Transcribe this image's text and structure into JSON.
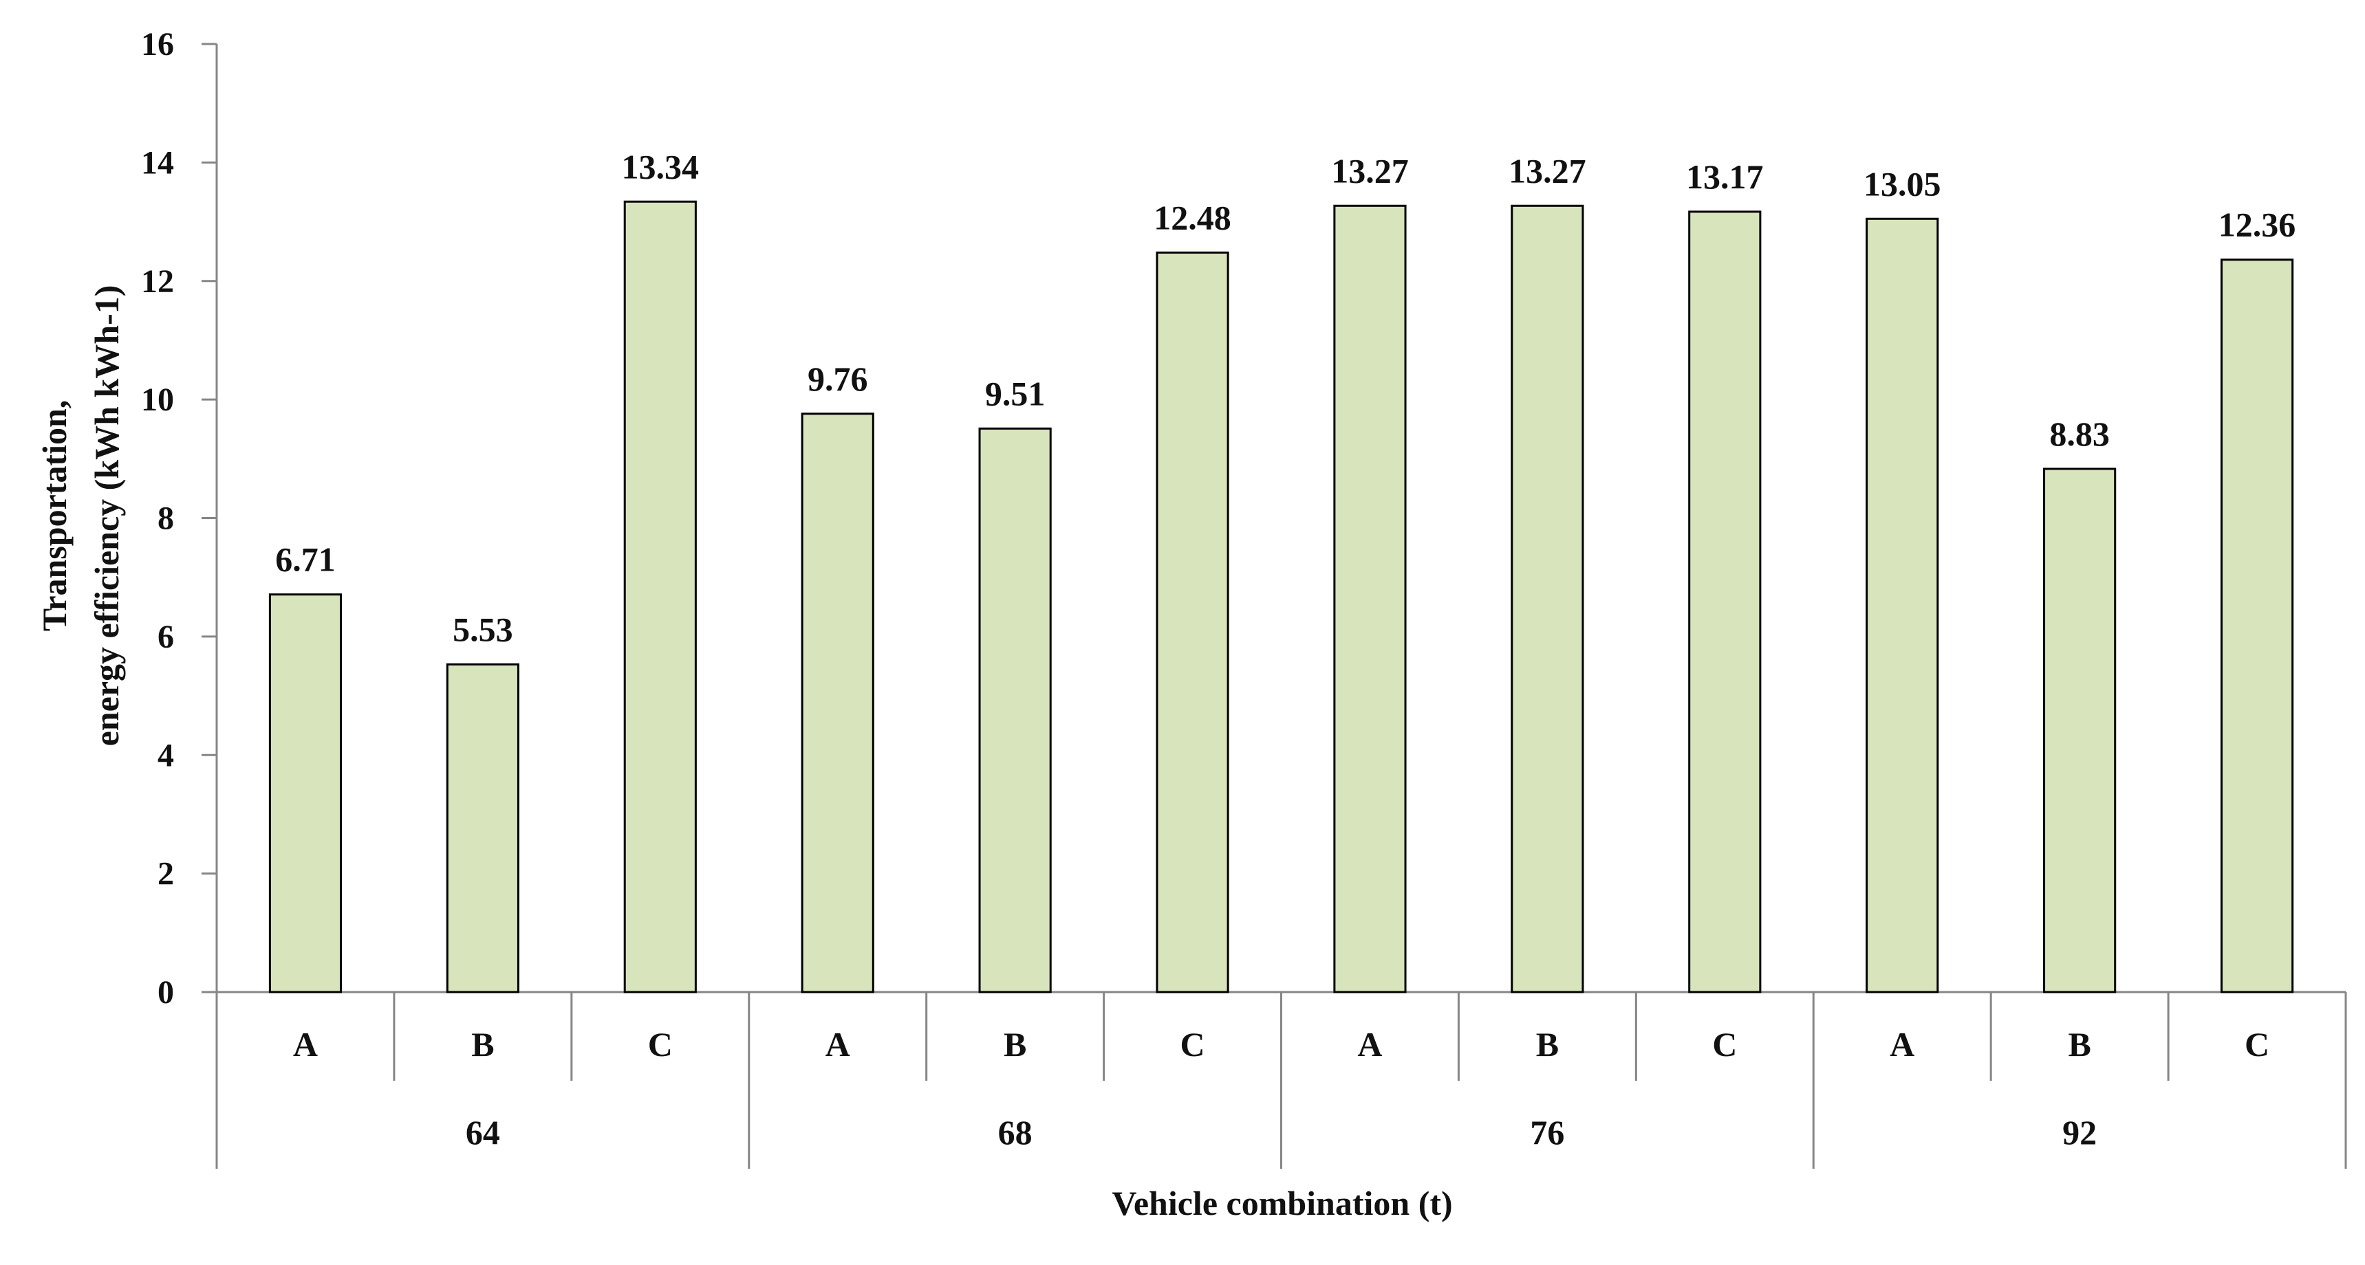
{
  "chart_data": {
    "type": "bar",
    "groups": [
      "64",
      "68",
      "76",
      "92"
    ],
    "categories": [
      "A",
      "B",
      "C",
      "A",
      "B",
      "C",
      "A",
      "B",
      "C",
      "A",
      "B",
      "C"
    ],
    "group_of_category": [
      "64",
      "64",
      "64",
      "68",
      "68",
      "68",
      "76",
      "76",
      "76",
      "92",
      "92",
      "92"
    ],
    "values": [
      6.71,
      5.53,
      13.34,
      9.76,
      9.51,
      12.48,
      13.27,
      13.27,
      13.17,
      13.05,
      8.83,
      12.36
    ],
    "value_labels": [
      "6.71",
      "5.53",
      "13.34",
      "9.76",
      "9.51",
      "12.48",
      "13.27",
      "13.27",
      "13.17",
      "13.05",
      "8.83",
      "12.36"
    ],
    "ylim": [
      0,
      16
    ],
    "yticks": [
      0,
      2,
      4,
      6,
      8,
      10,
      12,
      14,
      16
    ],
    "ylabel_lines": [
      "Transportation,",
      "energy efficiency (kWh kWh-1)"
    ],
    "xlabel": "Vehicle combination (t)",
    "title": "",
    "grid": false,
    "legend": false,
    "colors": {
      "bar_fill": "#d8e4bc",
      "bar_stroke": "#000000",
      "axis": "#868686"
    }
  }
}
